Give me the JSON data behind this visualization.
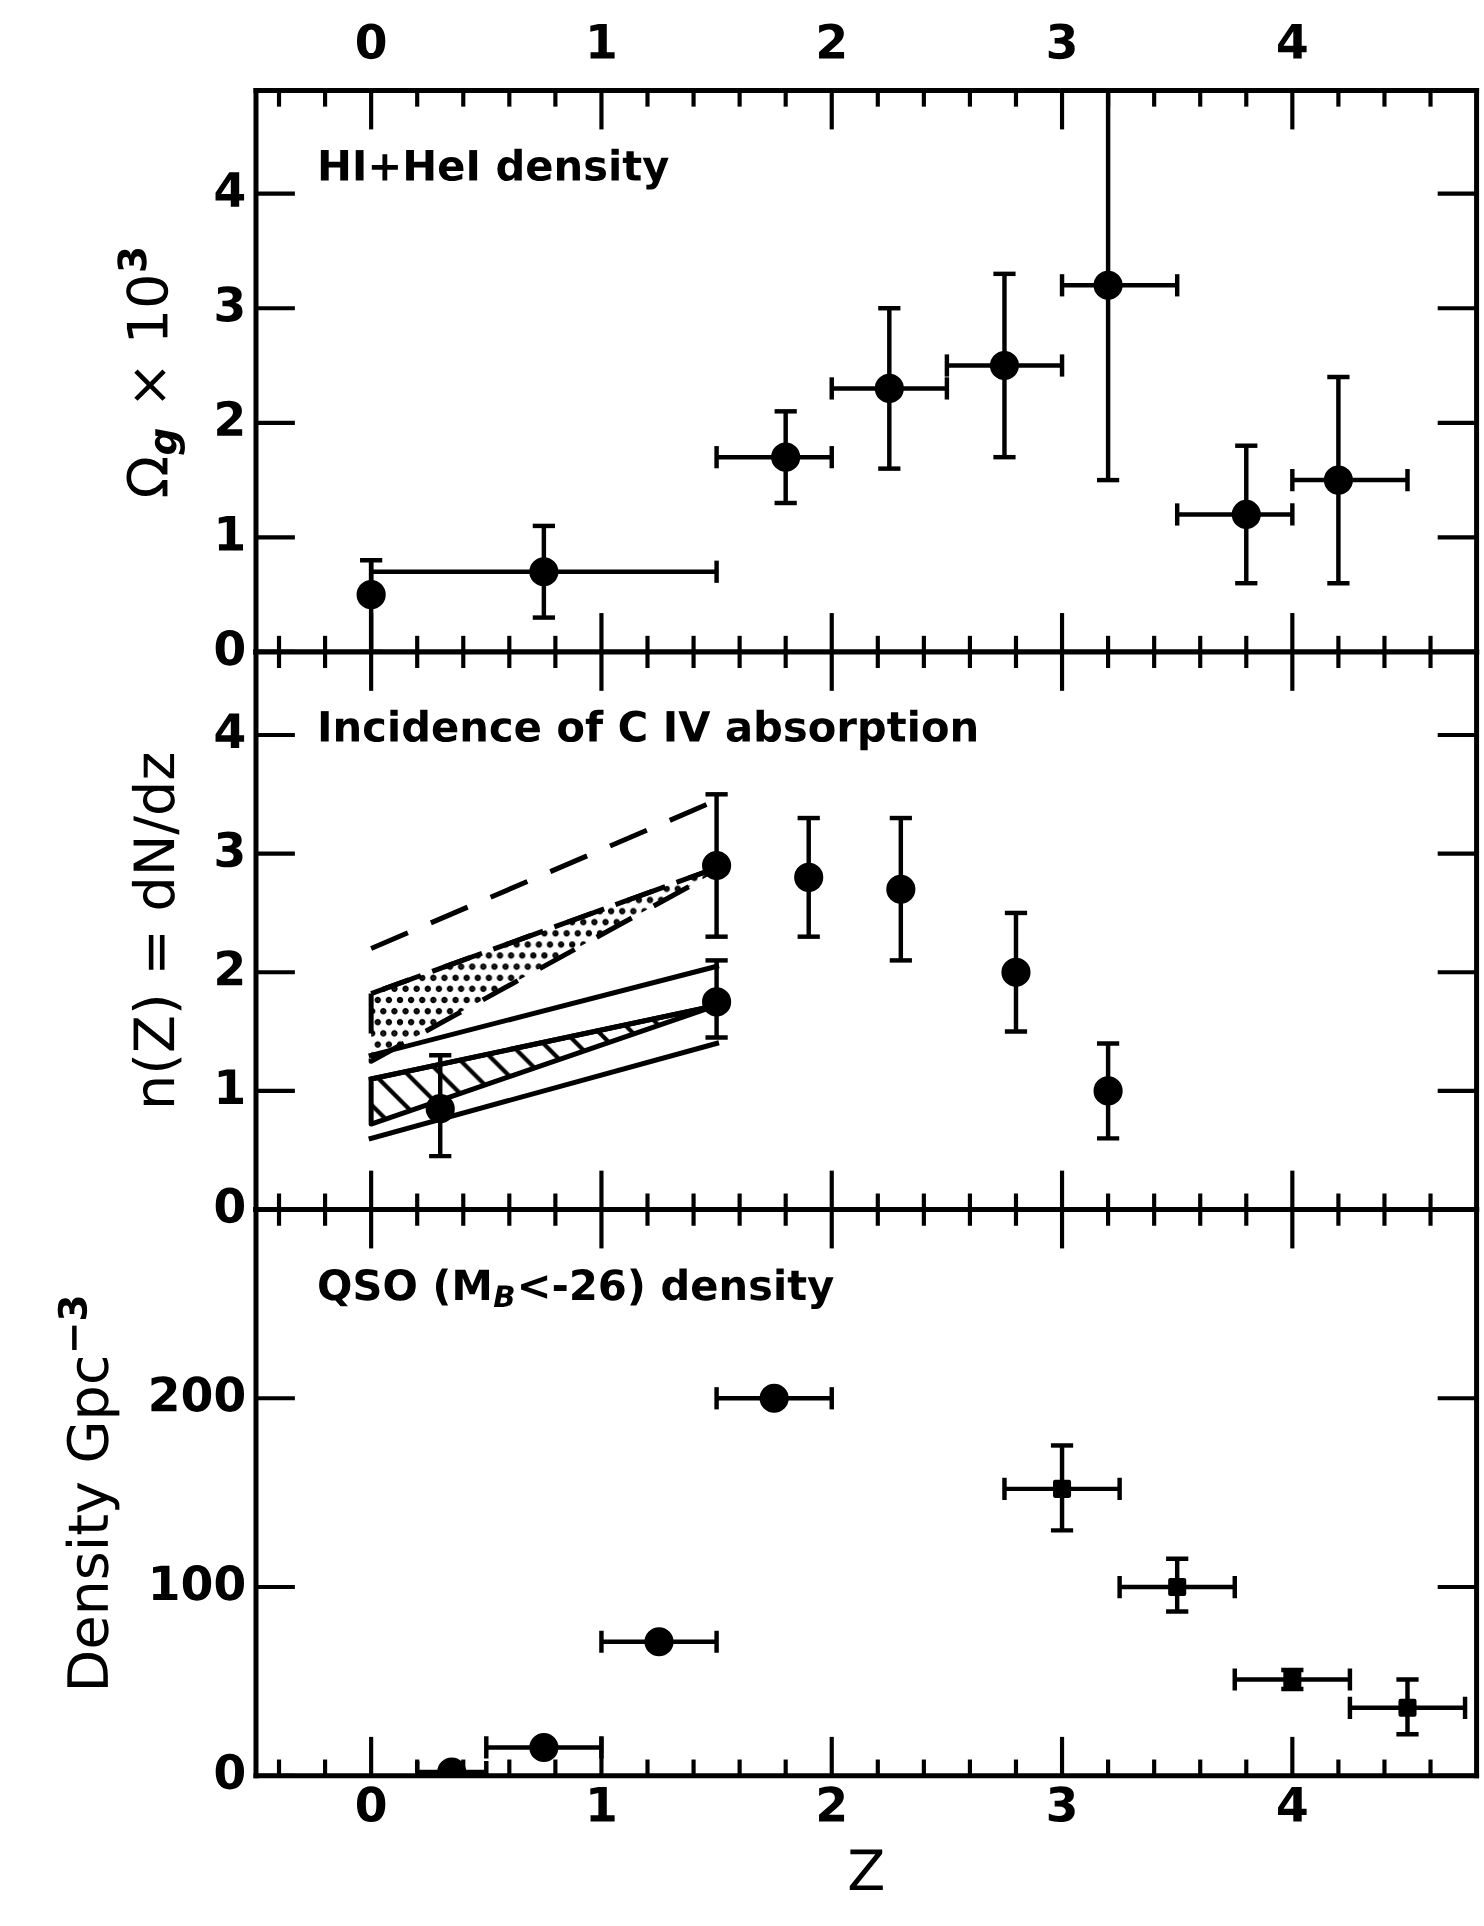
{
  "chart_data": [
    {
      "type": "scatter",
      "ylabel": "Ω$_{g}$ × 10$^{3}$",
      "annotations": [
        "HI+HeI density"
      ],
      "xlim": [
        -0.5,
        4.8
      ],
      "ylim": [
        0,
        4.9
      ],
      "yticks": [
        0,
        1,
        2,
        3,
        4
      ],
      "x2lim": [
        -0.5,
        4.8
      ],
      "x2ticks": [
        0,
        1,
        2,
        3,
        4
      ],
      "tick_labels": "y",
      "grid": false,
      "legend": false,
      "series": [
        {
          "color": "#000000",
          "marker": "circle",
          "x": [
            0.75,
            1.8,
            2.25,
            2.75,
            3.2,
            3.8,
            4.2
          ],
          "values": [
            0.7,
            1.7,
            2.3,
            2.5,
            3.2,
            1.2,
            1.5
          ],
          "xerrors": [
            [
              0,
              1.5
            ],
            [
              1.5,
              2.0
            ],
            [
              2.0,
              2.5
            ],
            [
              2.5,
              3.0
            ],
            [
              3.0,
              3.5
            ],
            [
              3.5,
              4.0
            ],
            [
              4.0,
              4.5
            ]
          ],
          "errors": [
            [
              0.3,
              1.1
            ],
            [
              1.3,
              2.1
            ],
            [
              1.6,
              3.0
            ],
            [
              1.7,
              3.3
            ],
            [
              1.5,
              4.9
            ],
            [
              0.6,
              1.8
            ],
            [
              0.6,
              2.4
            ]
          ]
        },
        {
          "color": "#000000",
          "marker": "circle",
          "x": [
            0
          ],
          "values": [
            0.5
          ],
          "errors": [
            [
              0,
              0.8
            ]
          ]
        }
      ]
    },
    {
      "type": "scatter",
      "ylabel": "n(Z) = dN/dz",
      "annotations": [
        "Incidence of C IV absorption"
      ],
      "xlim": [
        -0.5,
        4.8
      ],
      "xticks": [
        0,
        1,
        2,
        3,
        4
      ],
      "ylim": [
        0,
        4.7
      ],
      "yticks": [
        0,
        1,
        2,
        3,
        4
      ],
      "tick_labels": "y",
      "grid": false,
      "legend": false,
      "series": [
        {
          "type": "line",
          "color": "#000000",
          "line_style": "dashed",
          "x": [
            0,
            1.5
          ],
          "values": [
            2.2,
            3.45
          ]
        },
        {
          "type": "line",
          "color": "#000000",
          "line_style": "dashed",
          "x": [
            0,
            1.5
          ],
          "values": [
            1.82,
            2.88
          ],
          "lower": [
            1.25,
            2.85
          ],
          "upper": [
            1.82,
            2.88
          ]
        },
        {
          "type": "line",
          "color": "#000000",
          "line_style": "solid",
          "x": [
            0,
            1.5
          ],
          "values": [
            1.3,
            2.05
          ]
        },
        {
          "type": "line",
          "color": "#000000",
          "line_style": "solid",
          "x": [
            0,
            1.5
          ],
          "values": [
            1.1,
            1.72
          ],
          "lower": [
            0.72,
            1.72
          ],
          "upper": [
            1.1,
            1.72
          ]
        },
        {
          "type": "line",
          "color": "#000000",
          "line_style": "solid",
          "x": [
            0,
            1.5
          ],
          "values": [
            0.6,
            1.4
          ]
        },
        {
          "color": "#000000",
          "marker": "circle",
          "x": [
            1.5,
            1.9,
            2.3,
            2.8,
            3.2
          ],
          "values": [
            2.9,
            2.8,
            2.7,
            2.0,
            1.0
          ],
          "errors": [
            [
              2.3,
              3.5
            ],
            [
              2.3,
              3.3
            ],
            [
              2.1,
              3.3
            ],
            [
              1.5,
              2.5
            ],
            [
              0.6,
              1.4
            ]
          ]
        },
        {
          "color": "#000000",
          "marker": "circle",
          "x": [
            0.3,
            1.5
          ],
          "values": [
            0.85,
            1.75
          ],
          "errors": [
            [
              0.45,
              1.3
            ],
            [
              1.45,
              2.1
            ]
          ]
        }
      ]
    },
    {
      "type": "scatter",
      "xlabel": "Z",
      "ylabel": "Density Gpc$^{−3}$",
      "annotations": [
        "QSO (M$_{B}$<-26) density"
      ],
      "xlim": [
        -0.5,
        4.8
      ],
      "xticks": [
        0,
        1,
        2,
        3,
        4
      ],
      "ylim": [
        0,
        300
      ],
      "yticks": [
        0,
        100,
        200
      ],
      "grid": false,
      "legend": false,
      "series": [
        {
          "color": "#000000",
          "marker": "circle",
          "x": [
            0.35,
            0.75,
            1.25,
            1.75
          ],
          "values": [
            2,
            15,
            71,
            200
          ],
          "xerrors": [
            [
              0.2,
              0.5
            ],
            [
              0.5,
              1.0
            ],
            [
              1.0,
              1.5
            ],
            [
              1.5,
              2.0
            ]
          ]
        },
        {
          "color": "#000000",
          "marker": "square",
          "x": [
            3.0,
            3.5,
            4.0,
            4.5
          ],
          "values": [
            152,
            100,
            51,
            36
          ],
          "xerrors": [
            [
              2.75,
              3.25
            ],
            [
              3.25,
              3.75
            ],
            [
              3.75,
              4.25
            ],
            [
              4.25,
              4.75
            ]
          ],
          "errors": [
            [
              130,
              175
            ],
            [
              87,
              115
            ],
            [
              46,
              56
            ],
            [
              22,
              51
            ]
          ]
        }
      ]
    }
  ]
}
